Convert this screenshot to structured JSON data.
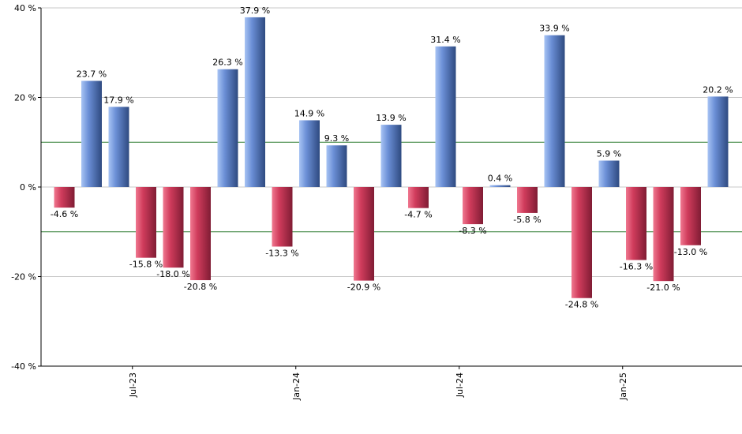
{
  "chart_data": {
    "type": "bar",
    "title": "",
    "xlabel": "",
    "ylabel": "",
    "ylim": [
      -40,
      40
    ],
    "y_ticks": [
      40,
      20,
      0,
      -20,
      -40
    ],
    "y_tick_labels": [
      "40 %",
      "20 %",
      "0 %",
      "-20 %",
      "-40 %"
    ],
    "reference_lines": [
      10,
      -10
    ],
    "x_tick_labels": [
      {
        "label": "Jul-23",
        "after_index": 2
      },
      {
        "label": "Jan-24",
        "after_index": 8
      },
      {
        "label": "Jul-24",
        "after_index": 14
      },
      {
        "label": "Jan-25",
        "after_index": 20
      }
    ],
    "values": [
      -4.6,
      23.7,
      17.9,
      -15.8,
      -18.0,
      -20.8,
      26.3,
      37.9,
      -13.3,
      14.9,
      9.3,
      -20.9,
      13.9,
      -4.7,
      31.4,
      -8.3,
      0.4,
      -5.8,
      33.9,
      -24.8,
      5.9,
      -16.3,
      -21.0,
      -13.0,
      20.2
    ],
    "labels": [
      "-4.6 %",
      "23.7 %",
      "17.9 %",
      "-15.8 %",
      "-18.0 %",
      "-20.8 %",
      "26.3 %",
      "37.9 %",
      "-13.3 %",
      "14.9 %",
      "9.3 %",
      "-20.9 %",
      "13.9 %",
      "-4.7 %",
      "31.4 %",
      "-8.3 %",
      "0.4 %",
      "-5.8 %",
      "33.9 %",
      "-24.8 %",
      "5.9 %",
      "-16.3 %",
      "-21.0 %",
      "-13.0 %",
      "20.2 %"
    ],
    "colors": {
      "positive_light": "#a8c4f4",
      "positive_mid": "#6b8fd6",
      "positive_dark": "#2e4a80",
      "negative_light": "#f07890",
      "negative_mid": "#d03c5c",
      "negative_dark": "#801c34",
      "grid": "#c8c8c8",
      "reference": "#2e7d32",
      "axis": "#000000"
    }
  }
}
